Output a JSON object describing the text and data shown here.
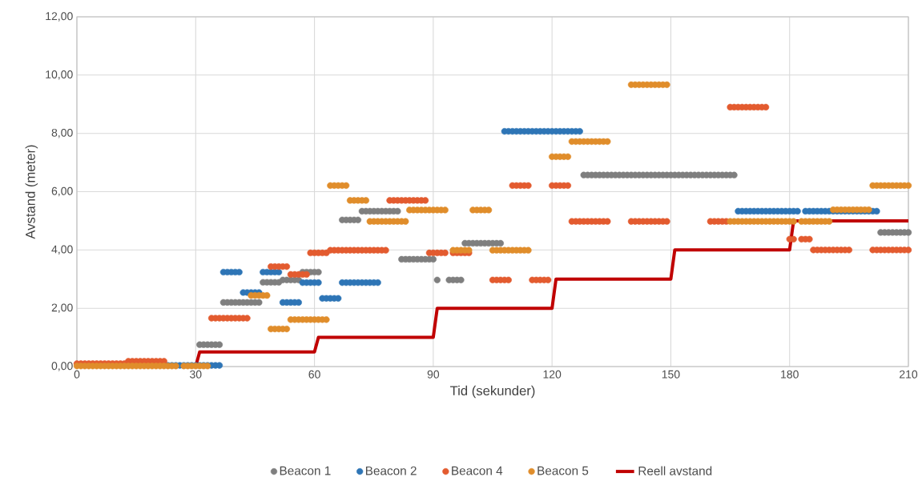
{
  "chart_data": {
    "type": "scatter",
    "xlabel": "Tid (sekunder)",
    "ylabel": "Avstand (meter)",
    "xlim": [
      0,
      210
    ],
    "ylim": [
      0,
      12
    ],
    "xticks": [
      0,
      30,
      60,
      90,
      120,
      150,
      180,
      210
    ],
    "yticks": [
      {
        "value": 0,
        "label": "0,00"
      },
      {
        "value": 2,
        "label": "2,00"
      },
      {
        "value": 4,
        "label": "4,00"
      },
      {
        "value": 6,
        "label": "6,00"
      },
      {
        "value": 8,
        "label": "8,00"
      },
      {
        "value": 10,
        "label": "10,00"
      },
      {
        "value": 12,
        "label": "12,00"
      }
    ],
    "grid": true,
    "legend": "bottom",
    "series": [
      {
        "name": "Beacon 1",
        "marker": "circle",
        "color": "#7f7f7f",
        "x": [
          31,
          32,
          33,
          34,
          35,
          36,
          37,
          38,
          39,
          40,
          41,
          42,
          43,
          44,
          45,
          46,
          47,
          48,
          49,
          50,
          51,
          52,
          53,
          54,
          55,
          56,
          57,
          58,
          59,
          60,
          61,
          67,
          68,
          69,
          70,
          71,
          72,
          73,
          74,
          75,
          76,
          77,
          78,
          79,
          80,
          81,
          82,
          83,
          84,
          85,
          86,
          87,
          88,
          89,
          90,
          91,
          94,
          95,
          96,
          97,
          98,
          99,
          100,
          101,
          102,
          103,
          104,
          105,
          106,
          107,
          128,
          129,
          130,
          131,
          132,
          133,
          134,
          135,
          136,
          137,
          138,
          139,
          140,
          141,
          142,
          143,
          144,
          145,
          146,
          147,
          148,
          149,
          150,
          151,
          152,
          153,
          154,
          155,
          156,
          157,
          158,
          159,
          160,
          161,
          162,
          163,
          164,
          165,
          166,
          203,
          204,
          205,
          206,
          207,
          208,
          209,
          210
        ],
        "values": [
          0.75,
          0.75,
          0.75,
          0.75,
          0.75,
          0.75,
          2.2,
          2.2,
          2.2,
          2.2,
          2.2,
          2.2,
          2.2,
          2.2,
          2.2,
          2.2,
          2.89,
          2.89,
          2.89,
          2.89,
          2.89,
          2.97,
          2.97,
          2.97,
          2.97,
          2.97,
          3.24,
          3.24,
          3.24,
          3.24,
          3.24,
          5.03,
          5.03,
          5.03,
          5.03,
          5.03,
          5.33,
          5.33,
          5.33,
          5.33,
          5.33,
          5.33,
          5.33,
          5.33,
          5.33,
          5.33,
          3.68,
          3.68,
          3.68,
          3.68,
          3.68,
          3.68,
          3.68,
          3.68,
          3.68,
          2.97,
          2.97,
          2.97,
          2.97,
          2.97,
          4.23,
          4.23,
          4.23,
          4.23,
          4.23,
          4.23,
          4.23,
          4.23,
          4.23,
          4.23,
          6.57,
          6.57,
          6.57,
          6.57,
          6.57,
          6.57,
          6.57,
          6.57,
          6.57,
          6.57,
          6.57,
          6.57,
          6.57,
          6.57,
          6.57,
          6.57,
          6.57,
          6.57,
          6.57,
          6.57,
          6.57,
          6.57,
          6.57,
          6.57,
          6.57,
          6.57,
          6.57,
          6.57,
          6.57,
          6.57,
          6.57,
          6.57,
          6.57,
          6.57,
          6.57,
          6.57,
          6.57,
          6.57,
          6.57,
          4.6,
          4.6,
          4.6,
          4.6,
          4.6,
          4.6,
          4.6,
          4.6
        ]
      },
      {
        "name": "Beacon 2",
        "marker": "circle",
        "color": "#2e75b6",
        "x": [
          23,
          24,
          25,
          26,
          27,
          28,
          29,
          30,
          31,
          32,
          33,
          34,
          35,
          36,
          37,
          38,
          39,
          40,
          41,
          42,
          43,
          44,
          45,
          46,
          47,
          48,
          49,
          50,
          51,
          52,
          53,
          54,
          55,
          56,
          57,
          58,
          59,
          60,
          61,
          62,
          63,
          64,
          65,
          66,
          67,
          68,
          69,
          70,
          71,
          72,
          73,
          74,
          75,
          76,
          108,
          109,
          110,
          111,
          112,
          113,
          114,
          115,
          116,
          117,
          118,
          119,
          120,
          121,
          122,
          123,
          124,
          125,
          126,
          127,
          167,
          168,
          169,
          170,
          171,
          172,
          173,
          174,
          175,
          176,
          177,
          178,
          179,
          180,
          181,
          182,
          184,
          185,
          186,
          187,
          188,
          189,
          190,
          191,
          192,
          193,
          194,
          195,
          196,
          197,
          198,
          199,
          200,
          201,
          202
        ],
        "values": [
          0.04,
          0.04,
          0.04,
          0.04,
          0.04,
          0.04,
          0.04,
          0.04,
          0.04,
          0.04,
          0.04,
          0.04,
          0.04,
          0.04,
          3.24,
          3.24,
          3.24,
          3.24,
          3.24,
          2.54,
          2.54,
          2.54,
          2.54,
          2.54,
          3.24,
          3.24,
          3.24,
          3.24,
          3.24,
          2.2,
          2.2,
          2.2,
          2.2,
          2.2,
          2.88,
          2.88,
          2.88,
          2.88,
          2.88,
          2.34,
          2.34,
          2.34,
          2.34,
          2.34,
          2.88,
          2.88,
          2.88,
          2.88,
          2.88,
          2.88,
          2.88,
          2.88,
          2.88,
          2.88,
          8.07,
          8.07,
          8.07,
          8.07,
          8.07,
          8.07,
          8.07,
          8.07,
          8.07,
          8.07,
          8.07,
          8.07,
          8.07,
          8.07,
          8.07,
          8.07,
          8.07,
          8.07,
          8.07,
          8.07,
          5.33,
          5.33,
          5.33,
          5.33,
          5.33,
          5.33,
          5.33,
          5.33,
          5.33,
          5.33,
          5.33,
          5.33,
          5.33,
          5.33,
          5.33,
          5.33,
          5.33,
          5.33,
          5.33,
          5.33,
          5.33,
          5.33,
          5.33,
          5.33,
          5.33,
          5.33,
          5.33,
          5.33,
          5.33,
          5.33,
          5.33,
          5.33,
          5.33,
          5.33,
          5.33
        ]
      },
      {
        "name": "Beacon 4",
        "marker": "circle",
        "color": "#e35b2f",
        "x": [
          0,
          1,
          2,
          3,
          4,
          5,
          6,
          7,
          8,
          9,
          10,
          11,
          12,
          13,
          14,
          15,
          16,
          17,
          18,
          19,
          20,
          21,
          22,
          34,
          35,
          36,
          37,
          38,
          39,
          40,
          41,
          42,
          43,
          49,
          50,
          51,
          52,
          53,
          54,
          55,
          56,
          57,
          58,
          59,
          60,
          61,
          62,
          63,
          64,
          65,
          66,
          67,
          68,
          69,
          70,
          71,
          72,
          73,
          74,
          75,
          76,
          77,
          78,
          79,
          80,
          81,
          82,
          83,
          84,
          85,
          86,
          87,
          88,
          89,
          90,
          91,
          92,
          93,
          95,
          96,
          97,
          98,
          99,
          105,
          106,
          107,
          108,
          109,
          110,
          111,
          112,
          113,
          114,
          115,
          116,
          117,
          118,
          119,
          120,
          121,
          122,
          123,
          124,
          125,
          126,
          127,
          128,
          129,
          130,
          131,
          132,
          133,
          134,
          140,
          141,
          142,
          143,
          144,
          145,
          146,
          147,
          148,
          149,
          160,
          161,
          162,
          163,
          164,
          165,
          166,
          167,
          168,
          169,
          170,
          171,
          172,
          173,
          174,
          180,
          181,
          183,
          184,
          185,
          186,
          187,
          188,
          189,
          190,
          191,
          192,
          193,
          194,
          195,
          201,
          202,
          203,
          204,
          205,
          206,
          207,
          208,
          209,
          210
        ],
        "values": [
          0.1,
          0.1,
          0.1,
          0.1,
          0.1,
          0.1,
          0.1,
          0.1,
          0.1,
          0.1,
          0.1,
          0.1,
          0.1,
          0.18,
          0.18,
          0.18,
          0.18,
          0.18,
          0.18,
          0.18,
          0.18,
          0.18,
          0.18,
          1.66,
          1.66,
          1.66,
          1.66,
          1.66,
          1.66,
          1.66,
          1.66,
          1.66,
          1.66,
          3.43,
          3.43,
          3.43,
          3.43,
          3.43,
          3.16,
          3.16,
          3.16,
          3.16,
          3.16,
          3.9,
          3.9,
          3.9,
          3.9,
          3.9,
          3.99,
          3.99,
          3.99,
          3.99,
          3.99,
          3.99,
          3.99,
          3.99,
          3.99,
          3.99,
          3.99,
          3.99,
          3.99,
          3.99,
          3.99,
          5.7,
          5.7,
          5.7,
          5.7,
          5.7,
          5.7,
          5.7,
          5.7,
          5.7,
          5.7,
          3.9,
          3.9,
          3.9,
          3.9,
          3.9,
          3.9,
          3.9,
          3.9,
          3.9,
          3.9,
          2.97,
          2.97,
          2.97,
          2.97,
          2.97,
          6.21,
          6.21,
          6.21,
          6.21,
          6.21,
          2.97,
          2.97,
          2.97,
          2.97,
          2.97,
          6.21,
          6.21,
          6.21,
          6.21,
          6.21,
          4.98,
          4.98,
          4.98,
          4.98,
          4.98,
          4.98,
          4.98,
          4.98,
          4.98,
          4.98,
          4.98,
          4.98,
          4.98,
          4.98,
          4.98,
          4.98,
          4.98,
          4.98,
          4.98,
          4.98,
          4.98,
          4.98,
          4.98,
          4.98,
          4.98,
          8.9,
          8.9,
          8.9,
          8.9,
          8.9,
          8.9,
          8.9,
          8.9,
          8.9,
          8.9,
          4.37,
          4.37,
          4.37,
          4.37,
          4.37,
          4.0,
          4.0,
          4.0,
          4.0,
          4.0,
          4.0,
          4.0,
          4.0,
          4.0,
          4.0,
          4.0,
          4.0,
          4.0,
          4.0,
          4.0,
          4.0,
          4.0,
          4.0,
          4.0,
          4.0
        ]
      },
      {
        "name": "Beacon 5",
        "marker": "circle",
        "color": "#e08d2b",
        "x": [
          0,
          1,
          2,
          3,
          4,
          5,
          6,
          7,
          8,
          9,
          10,
          11,
          12,
          13,
          14,
          15,
          16,
          17,
          18,
          19,
          20,
          21,
          22,
          23,
          24,
          25,
          27,
          28,
          29,
          30,
          31,
          32,
          33,
          44,
          45,
          46,
          47,
          48,
          49,
          50,
          51,
          52,
          53,
          54,
          55,
          56,
          57,
          58,
          59,
          60,
          61,
          62,
          63,
          64,
          65,
          66,
          67,
          68,
          69,
          70,
          71,
          72,
          73,
          74,
          75,
          76,
          77,
          78,
          79,
          80,
          81,
          82,
          83,
          84,
          85,
          86,
          87,
          88,
          89,
          90,
          91,
          92,
          93,
          95,
          96,
          97,
          98,
          99,
          100,
          101,
          102,
          103,
          104,
          105,
          106,
          107,
          108,
          109,
          110,
          111,
          112,
          113,
          114,
          120,
          121,
          122,
          123,
          124,
          125,
          126,
          127,
          128,
          129,
          130,
          131,
          132,
          133,
          134,
          140,
          141,
          142,
          143,
          144,
          145,
          146,
          147,
          148,
          149,
          165,
          166,
          167,
          168,
          169,
          170,
          171,
          172,
          173,
          174,
          175,
          176,
          177,
          178,
          179,
          180,
          181,
          183,
          184,
          185,
          186,
          187,
          188,
          189,
          190,
          191,
          192,
          193,
          194,
          195,
          196,
          197,
          198,
          199,
          200,
          201,
          202,
          203,
          204,
          205,
          206,
          207,
          208,
          209,
          210
        ],
        "values": [
          0.02,
          0.02,
          0.02,
          0.02,
          0.02,
          0.02,
          0.02,
          0.02,
          0.02,
          0.02,
          0.02,
          0.02,
          0.02,
          0.02,
          0.02,
          0.02,
          0.02,
          0.02,
          0.02,
          0.02,
          0.02,
          0.02,
          0.02,
          0.02,
          0.02,
          0.02,
          0.02,
          0.02,
          0.02,
          0.02,
          0.02,
          0.02,
          0.02,
          2.44,
          2.44,
          2.44,
          2.44,
          2.44,
          1.29,
          1.29,
          1.29,
          1.29,
          1.29,
          1.61,
          1.61,
          1.61,
          1.61,
          1.61,
          1.61,
          1.61,
          1.61,
          1.61,
          1.61,
          6.21,
          6.21,
          6.21,
          6.21,
          6.21,
          5.7,
          5.7,
          5.7,
          5.7,
          5.7,
          4.98,
          4.98,
          4.98,
          4.98,
          4.98,
          4.98,
          4.98,
          4.98,
          4.98,
          4.98,
          5.37,
          5.37,
          5.37,
          5.37,
          5.37,
          5.37,
          5.37,
          5.37,
          5.37,
          5.37,
          3.99,
          3.99,
          3.99,
          3.99,
          3.99,
          5.37,
          5.37,
          5.37,
          5.37,
          5.37,
          3.99,
          3.99,
          3.99,
          3.99,
          3.99,
          3.99,
          3.99,
          3.99,
          3.99,
          3.99,
          7.2,
          7.2,
          7.2,
          7.2,
          7.2,
          7.72,
          7.72,
          7.72,
          7.72,
          7.72,
          7.72,
          7.72,
          7.72,
          7.72,
          7.72,
          9.67,
          9.67,
          9.67,
          9.67,
          9.67,
          9.67,
          9.67,
          9.67,
          9.67,
          9.67,
          4.98,
          4.98,
          4.98,
          4.98,
          4.98,
          4.98,
          4.98,
          4.98,
          4.98,
          4.98,
          4.98,
          4.98,
          4.98,
          4.98,
          4.98,
          4.98,
          4.98,
          4.98,
          4.98,
          4.98,
          4.98,
          4.98,
          4.98,
          4.98,
          4.98,
          5.38,
          5.38,
          5.38,
          5.38,
          5.38,
          5.38,
          5.38,
          5.38,
          5.38,
          5.38,
          6.21,
          6.21,
          6.21,
          6.21,
          6.21,
          6.21,
          6.21,
          6.21,
          6.21,
          6.21
        ]
      },
      {
        "name": "Reell avstand",
        "type": "line",
        "marker": "none",
        "color": "#c00000",
        "x": [
          0,
          30,
          31,
          60,
          61,
          90,
          91,
          120,
          121,
          150,
          151,
          180,
          181,
          210
        ],
        "values": [
          0,
          0,
          0.5,
          0.5,
          1,
          1,
          2,
          2,
          3,
          3,
          4,
          4,
          5,
          5
        ]
      }
    ]
  }
}
